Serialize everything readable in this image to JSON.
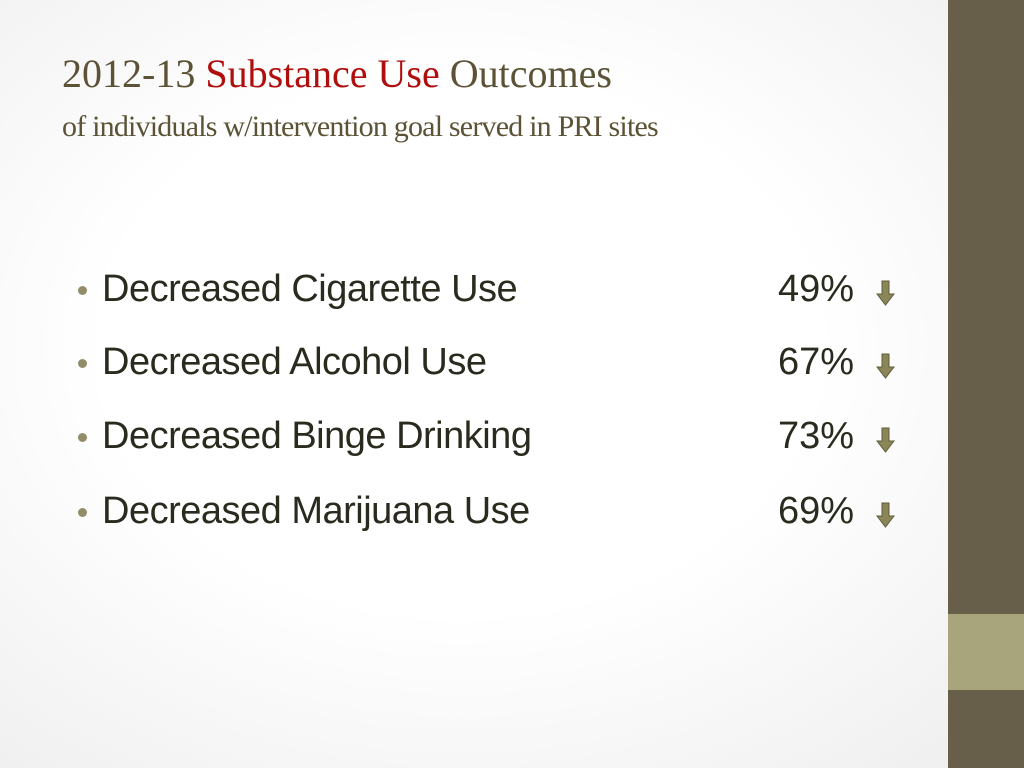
{
  "header": {
    "title": {
      "year": "2012-13",
      "highlight": "Substance Use",
      "rest": "Outcomes"
    },
    "subtitle": "of individuals w/intervention goal served in PRI sites"
  },
  "items": [
    {
      "label": "Decreased Cigarette Use",
      "value": "49%"
    },
    {
      "label": "Decreased Alcohol Use",
      "value": "67%"
    },
    {
      "label": "Decreased Binge Drinking",
      "value": "73%"
    },
    {
      "label": "Decreased Marijuana Use",
      "value": "69%"
    }
  ]
}
